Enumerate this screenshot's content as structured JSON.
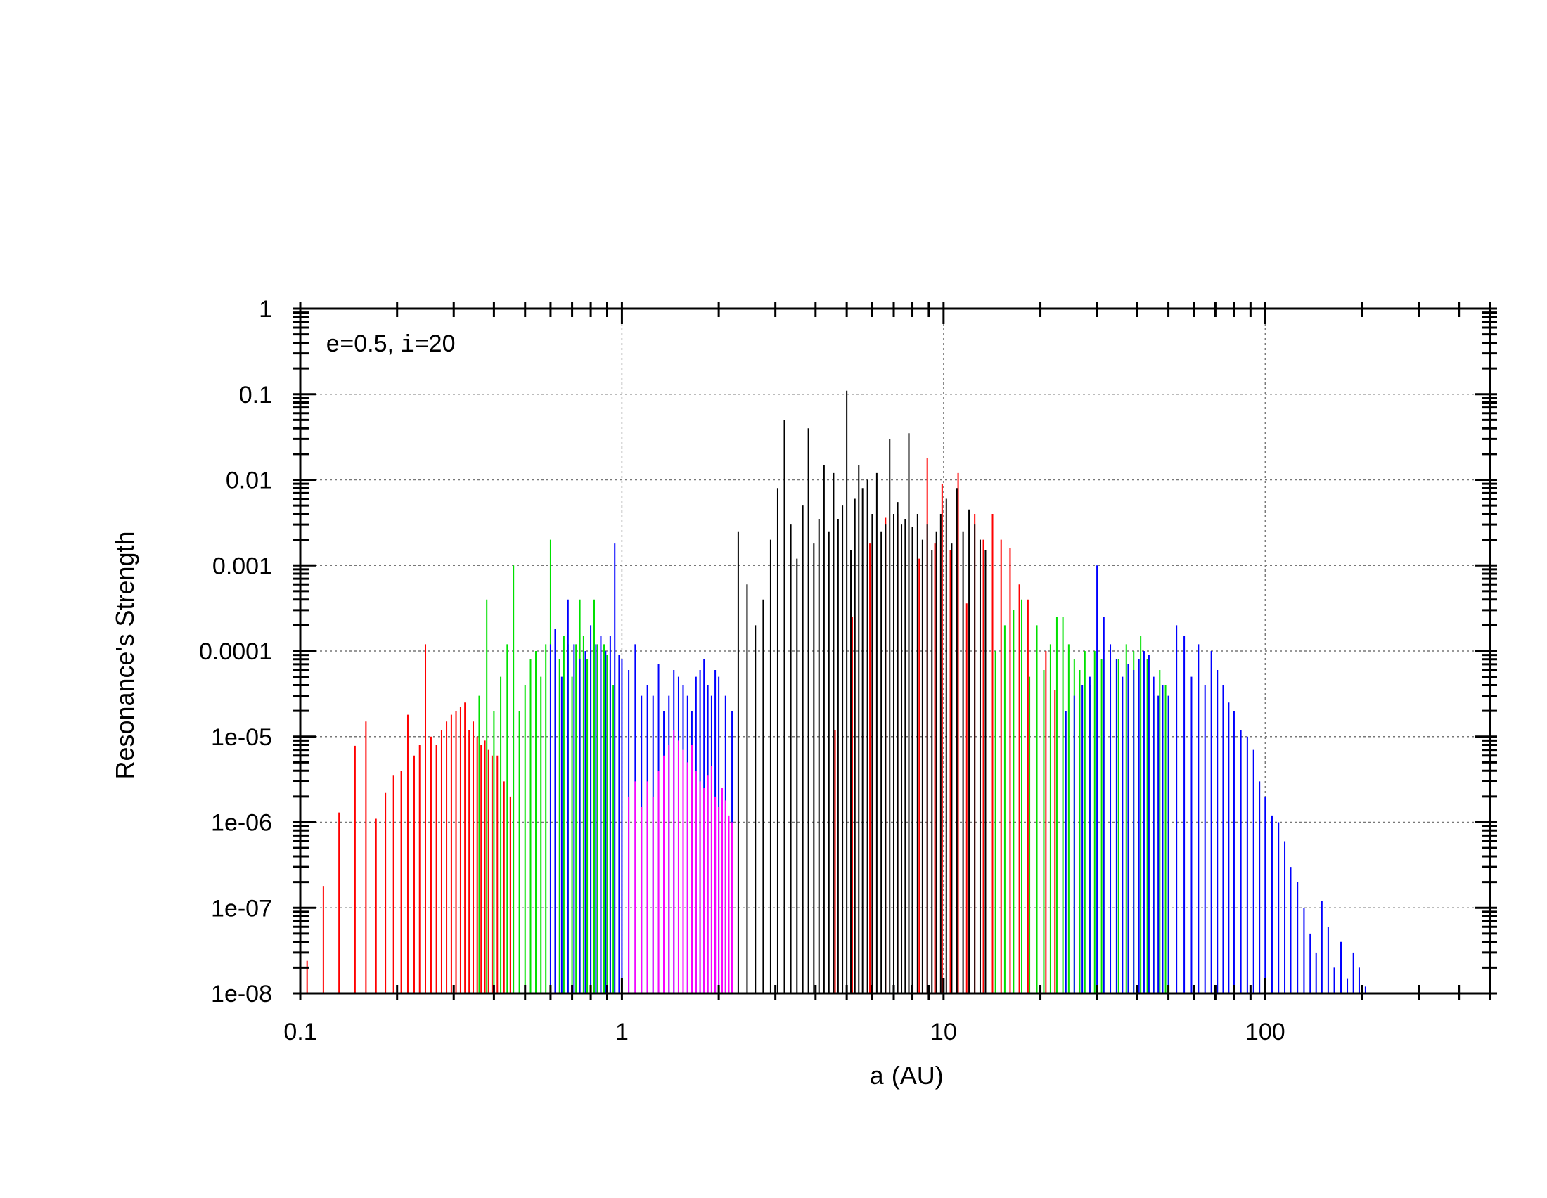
{
  "chart_data": {
    "type": "bar",
    "xlabel_var": "a",
    "xlabel_unit": " (AU)",
    "ylabel": "Resonance's Strength",
    "annotation": {
      "e_var": "e",
      "e_value": "=0.5, ",
      "i_var": "i",
      "i_value": "=20"
    },
    "xscale": "log",
    "yscale": "log",
    "xlim": [
      0.1,
      500
    ],
    "ylim": [
      1e-08,
      1
    ],
    "grid": true,
    "x_ticks": [
      {
        "value": 0.1,
        "label": "0.1"
      },
      {
        "value": 1,
        "label": "1"
      },
      {
        "value": 10,
        "label": "10"
      },
      {
        "value": 100,
        "label": "100"
      }
    ],
    "y_ticks": [
      {
        "value": 1,
        "label": "1"
      },
      {
        "value": 0.1,
        "label": "0.1"
      },
      {
        "value": 0.01,
        "label": "0.01"
      },
      {
        "value": 0.001,
        "label": "0.001"
      },
      {
        "value": 0.0001,
        "label": "0.0001"
      },
      {
        "value": 1e-05,
        "label": "1e-05"
      },
      {
        "value": 1e-06,
        "label": "1e-06"
      },
      {
        "value": 1e-07,
        "label": "1e-07"
      },
      {
        "value": 1e-08,
        "label": "1e-08"
      }
    ],
    "series": [
      {
        "color": "#ff0000",
        "x": [
          0.105,
          0.118,
          0.132,
          0.148,
          0.16,
          0.172,
          0.184,
          0.195,
          0.206,
          0.216,
          0.226,
          0.235,
          0.245,
          0.255,
          0.265,
          0.275,
          0.285,
          0.295,
          0.305,
          0.315,
          0.325,
          0.335,
          0.345,
          0.355,
          0.365,
          0.375,
          0.385,
          0.395,
          0.41,
          0.43,
          0.45,
          4.6,
          5.2,
          5.9,
          6.6,
          7.2,
          7.8,
          8.4,
          8.9,
          9.4,
          9.9,
          10.5,
          11.1,
          11.8,
          12.5,
          13.3,
          14.2,
          15.1,
          16.1,
          17.2,
          18.3,
          19.5,
          20.8,
          22.2
        ],
        "y": [
          2.4e-08,
          1.8e-07,
          1.3e-06,
          7.8e-06,
          1.5e-05,
          1.1e-06,
          2.2e-06,
          3.5e-06,
          4e-06,
          1.8e-05,
          6e-06,
          8e-06,
          0.00012,
          1e-05,
          8e-06,
          1.2e-05,
          1.5e-05,
          1.8e-05,
          2e-05,
          2.2e-05,
          2.5e-05,
          1.2e-05,
          1.5e-05,
          1e-05,
          8e-06,
          9e-06,
          7e-06,
          6e-06,
          6e-06,
          3e-06,
          2e-06,
          1.2e-05,
          0.00025,
          0.0018,
          0.0036,
          0.004,
          0.0025,
          0.0012,
          0.018,
          0.0018,
          0.009,
          0.0015,
          0.012,
          0.00036,
          0.004,
          0.002,
          0.004,
          0.002,
          0.0016,
          0.0006,
          0.0004,
          0.00018,
          0.0001,
          3.5e-05
        ]
      },
      {
        "color": "#00e000",
        "x": [
          0.36,
          0.38,
          0.4,
          0.42,
          0.44,
          0.46,
          0.48,
          0.5,
          0.52,
          0.54,
          0.56,
          0.58,
          0.6,
          0.62,
          0.64,
          0.66,
          0.68,
          0.7,
          0.72,
          0.74,
          0.76,
          0.78,
          0.8,
          0.82,
          0.84,
          0.86,
          0.88,
          0.9,
          0.92,
          0.94,
          14.5,
          15.5,
          16.5,
          17.5,
          18.5,
          19.5,
          20.5,
          21.5,
          22.5,
          23.5,
          24.5,
          25.5,
          26.5,
          27.5,
          28.5,
          29.5,
          31,
          33,
          35,
          37,
          39,
          41,
          43,
          45,
          47,
          49
        ],
        "y": [
          3e-05,
          0.0004,
          2e-05,
          5e-05,
          0.00012,
          0.001,
          2e-05,
          4e-05,
          8e-05,
          0.0001,
          5e-05,
          0.00012,
          0.002,
          6e-05,
          8e-05,
          0.00015,
          0.00012,
          5e-05,
          0.00012,
          0.0004,
          0.00015,
          8e-05,
          0.0001,
          0.0004,
          0.00012,
          8e-05,
          0.00012,
          9e-05,
          6e-05,
          4e-05,
          0.0001,
          0.0002,
          0.0003,
          0.0004,
          5e-05,
          0.0002,
          6e-05,
          0.00012,
          0.00025,
          0.00025,
          0.00012,
          8e-05,
          6e-05,
          0.0001,
          4e-05,
          0.0001,
          8e-05,
          5e-05,
          8e-05,
          0.00012,
          0.0001,
          0.00015,
          8e-05,
          3e-05,
          6e-05,
          4e-05
        ]
      },
      {
        "color": "#0000ff",
        "x": [
          0.6,
          0.62,
          0.65,
          0.68,
          0.71,
          0.74,
          0.77,
          0.8,
          0.83,
          0.86,
          0.89,
          0.92,
          0.95,
          0.98,
          1.0,
          1.05,
          1.1,
          1.15,
          1.2,
          1.25,
          1.3,
          1.35,
          1.4,
          1.45,
          1.5,
          1.55,
          1.6,
          1.65,
          1.7,
          1.75,
          1.8,
          1.85,
          1.9,
          1.95,
          2.0,
          2.1,
          2.2,
          24,
          25.5,
          27,
          28.5,
          30,
          31.5,
          33,
          34.5,
          36,
          37.5,
          39,
          40.5,
          42,
          43.5,
          45,
          46.5,
          48,
          50,
          53,
          56,
          59,
          62,
          65,
          68,
          71,
          74,
          77,
          80,
          84,
          88,
          92,
          96,
          100,
          105,
          110,
          115,
          120,
          126,
          132,
          138,
          144,
          150,
          157,
          164,
          172,
          180,
          188,
          196,
          205
        ],
        "y": [
          0.00012,
          0.00018,
          5e-05,
          0.0004,
          0.00012,
          8e-05,
          0.0001,
          0.0002,
          0.00012,
          0.00015,
          0.0001,
          0.00015,
          0.0018,
          9e-05,
          8e-05,
          6e-05,
          0.00012,
          3e-05,
          4e-05,
          3e-05,
          7e-05,
          2e-05,
          3e-05,
          6e-05,
          5e-05,
          4e-05,
          3e-05,
          2e-05,
          5e-05,
          6e-05,
          8e-05,
          4e-05,
          3e-05,
          6e-05,
          5e-05,
          3e-05,
          2e-05,
          2e-05,
          3e-05,
          4e-05,
          5e-05,
          0.001,
          0.00025,
          0.00012,
          8e-05,
          5e-05,
          7e-05,
          6e-05,
          8e-05,
          0.0001,
          9e-05,
          5e-05,
          3e-05,
          4e-05,
          3e-05,
          0.0002,
          0.00015,
          5e-05,
          0.00012,
          4e-05,
          0.0001,
          6e-05,
          4e-05,
          2.5e-05,
          2e-05,
          1.2e-05,
          1e-05,
          7e-06,
          3e-06,
          2e-06,
          1.2e-06,
          1e-06,
          6e-07,
          3e-07,
          2e-07,
          1e-07,
          5e-08,
          3e-08,
          1.2e-07,
          6e-08,
          2e-08,
          4e-08,
          1.5e-08,
          3e-08,
          2e-08,
          1.2e-08
        ]
      },
      {
        "color": "#ff00ff",
        "x": [
          1.05,
          1.1,
          1.15,
          1.2,
          1.25,
          1.3,
          1.35,
          1.4,
          1.45,
          1.5,
          1.55,
          1.6,
          1.65,
          1.7,
          1.75,
          1.8,
          1.85,
          1.9,
          1.95,
          2.0,
          2.05,
          2.1,
          2.15,
          2.2
        ],
        "y": [
          2e-06,
          3e-06,
          1.5e-06,
          3e-06,
          2e-06,
          4e-06,
          6e-06,
          8e-06,
          1.2e-05,
          9e-06,
          7e-06,
          5e-06,
          8e-06,
          4e-06,
          3e-06,
          2.5e-06,
          3.5e-06,
          4.5e-06,
          2e-06,
          1.5e-06,
          2.5e-06,
          1.8e-06,
          1.2e-06,
          1e-06
        ]
      },
      {
        "color": "#000000",
        "x": [
          2.3,
          2.45,
          2.6,
          2.75,
          2.9,
          3.05,
          3.2,
          3.35,
          3.5,
          3.65,
          3.8,
          3.95,
          4.1,
          4.25,
          4.4,
          4.55,
          4.7,
          4.85,
          5.0,
          5.15,
          5.3,
          5.45,
          5.6,
          5.8,
          6.0,
          6.2,
          6.4,
          6.6,
          6.8,
          7.0,
          7.2,
          7.4,
          7.6,
          7.8,
          8.0,
          8.3,
          8.6,
          8.9,
          9.2,
          9.5,
          9.8,
          10.2,
          10.6,
          11.0,
          11.5,
          12.0,
          12.5,
          13.0,
          13.5
        ],
        "y": [
          0.0025,
          0.0006,
          0.0002,
          0.0004,
          0.002,
          0.008,
          0.05,
          0.003,
          0.0012,
          0.005,
          0.04,
          0.0018,
          0.0035,
          0.015,
          0.0025,
          0.012,
          0.0035,
          0.005,
          0.11,
          0.0015,
          0.006,
          0.015,
          0.008,
          0.01,
          0.004,
          0.012,
          0.0025,
          0.003,
          0.03,
          0.004,
          0.0055,
          0.003,
          0.0035,
          0.035,
          0.0028,
          0.004,
          0.002,
          0.003,
          0.0015,
          0.0025,
          0.004,
          0.006,
          0.0018,
          0.008,
          0.0025,
          0.0045,
          0.003,
          0.002,
          0.0015
        ]
      }
    ]
  }
}
